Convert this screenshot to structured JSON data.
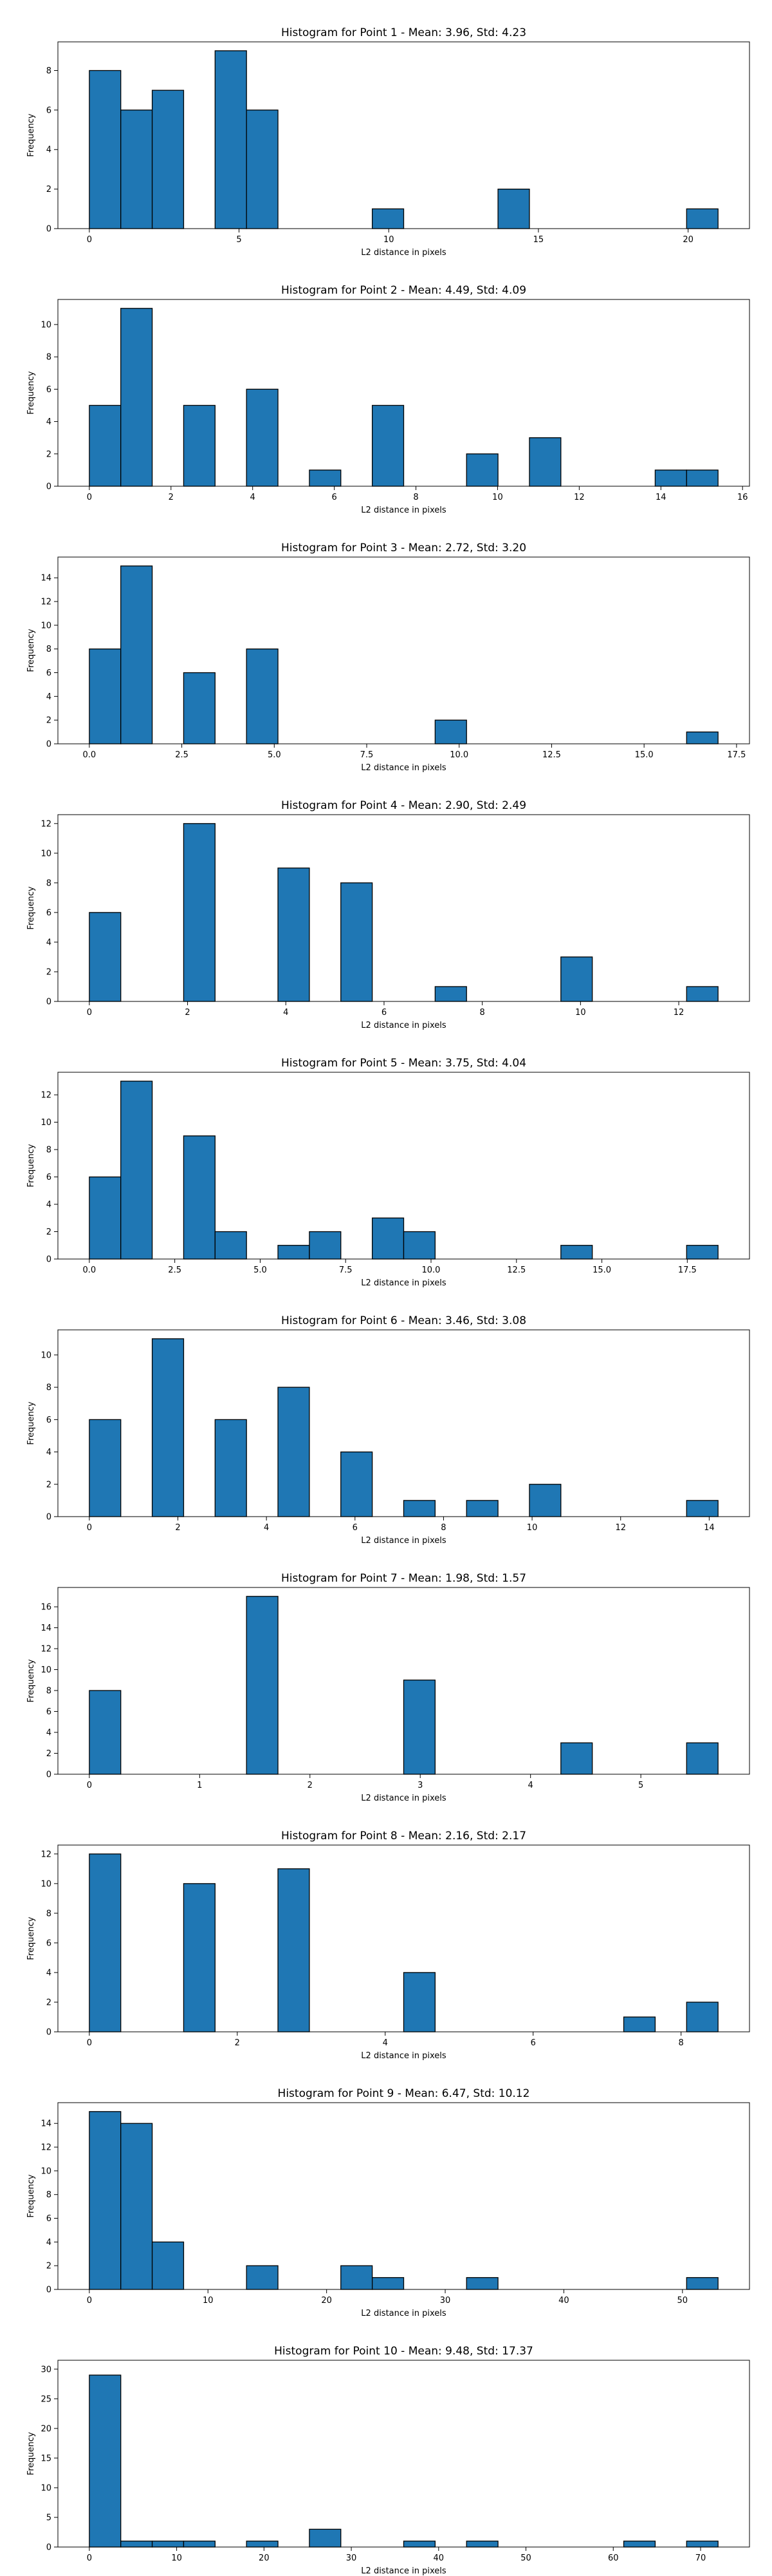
{
  "figure": {
    "background": "#ffffff"
  },
  "style": {
    "bar_fill": "#1f77b4",
    "bar_edge": "#000000"
  },
  "chart_data": [
    {
      "type": "bar",
      "title": "Histogram for Point 1 - Mean: 3.96, Std: 4.23",
      "xlabel": "L2 distance in pixels",
      "ylabel": "Frequency",
      "xlim": [
        -1.05,
        22.05
      ],
      "ylim": [
        0,
        9.45
      ],
      "xticks": [
        0,
        5,
        10,
        15,
        20
      ],
      "xtick_labels": [
        "0",
        "5",
        "10",
        "15",
        "20"
      ],
      "yticks": [
        0,
        2,
        4,
        6,
        8
      ],
      "ytick_labels": [
        "0",
        "2",
        "4",
        "6",
        "8"
      ],
      "bins": {
        "start": 0,
        "width": 1.05
      },
      "values": [
        8,
        6,
        7,
        0,
        9,
        6,
        0,
        0,
        0,
        1,
        0,
        0,
        0,
        2,
        0,
        0,
        0,
        0,
        0,
        1
      ]
    },
    {
      "type": "bar",
      "title": "Histogram for Point 2 - Mean: 4.49, Std: 4.09",
      "xlabel": "L2 distance in pixels",
      "ylabel": "Frequency",
      "xlim": [
        -0.77,
        16.17
      ],
      "ylim": [
        0,
        11.55
      ],
      "xticks": [
        0,
        2,
        4,
        6,
        8,
        10,
        12,
        14,
        16
      ],
      "xtick_labels": [
        "0",
        "2",
        "4",
        "6",
        "8",
        "10",
        "12",
        "14",
        "16"
      ],
      "yticks": [
        0,
        2,
        4,
        6,
        8,
        10
      ],
      "ytick_labels": [
        "0",
        "2",
        "4",
        "6",
        "8",
        "10"
      ],
      "bins": {
        "start": 0,
        "width": 0.77
      },
      "values": [
        5,
        11,
        0,
        5,
        0,
        6,
        0,
        1,
        0,
        5,
        0,
        0,
        2,
        0,
        3,
        0,
        0,
        0,
        1,
        1
      ]
    },
    {
      "type": "bar",
      "title": "Histogram for Point 3 - Mean: 2.72, Std: 3.20",
      "xlabel": "L2 distance in pixels",
      "ylabel": "Frequency",
      "xlim": [
        -0.85,
        17.85
      ],
      "ylim": [
        0,
        15.75
      ],
      "xticks": [
        0,
        2.5,
        5,
        7.5,
        10,
        12.5,
        15,
        17.5
      ],
      "xtick_labels": [
        "0.0",
        "2.5",
        "5.0",
        "7.5",
        "10.0",
        "12.5",
        "15.0",
        "17.5"
      ],
      "yticks": [
        0,
        2,
        4,
        6,
        8,
        10,
        12,
        14
      ],
      "ytick_labels": [
        "0",
        "2",
        "4",
        "6",
        "8",
        "10",
        "12",
        "14"
      ],
      "bins": {
        "start": 0,
        "width": 0.85
      },
      "values": [
        8,
        15,
        0,
        6,
        0,
        8,
        0,
        0,
        0,
        0,
        0,
        2,
        0,
        0,
        0,
        0,
        0,
        0,
        0,
        1
      ]
    },
    {
      "type": "bar",
      "title": "Histogram for Point 4 - Mean: 2.90, Std: 2.49",
      "xlabel": "L2 distance in pixels",
      "ylabel": "Frequency",
      "xlim": [
        -0.64,
        13.44
      ],
      "ylim": [
        0,
        12.6
      ],
      "xticks": [
        0,
        2,
        4,
        6,
        8,
        10,
        12
      ],
      "xtick_labels": [
        "0",
        "2",
        "4",
        "6",
        "8",
        "10",
        "12"
      ],
      "yticks": [
        0,
        2,
        4,
        6,
        8,
        10,
        12
      ],
      "ytick_labels": [
        "0",
        "2",
        "4",
        "6",
        "8",
        "10",
        "12"
      ],
      "bins": {
        "start": 0,
        "width": 0.64
      },
      "values": [
        6,
        0,
        0,
        12,
        0,
        0,
        9,
        0,
        8,
        0,
        0,
        1,
        0,
        0,
        0,
        3,
        0,
        0,
        0,
        1
      ]
    },
    {
      "type": "bar",
      "title": "Histogram for Point 5 - Mean: 3.75, Std: 4.04",
      "xlabel": "L2 distance in pixels",
      "ylabel": "Frequency",
      "xlim": [
        -0.92,
        19.32
      ],
      "ylim": [
        0,
        13.65
      ],
      "xticks": [
        0,
        2.5,
        5,
        7.5,
        10,
        12.5,
        15,
        17.5
      ],
      "xtick_labels": [
        "0.0",
        "2.5",
        "5.0",
        "7.5",
        "10.0",
        "12.5",
        "15.0",
        "17.5"
      ],
      "yticks": [
        0,
        2,
        4,
        6,
        8,
        10,
        12
      ],
      "ytick_labels": [
        "0",
        "2",
        "4",
        "6",
        "8",
        "10",
        "12"
      ],
      "bins": {
        "start": 0,
        "width": 0.92
      },
      "values": [
        6,
        13,
        0,
        9,
        2,
        0,
        1,
        2,
        0,
        3,
        2,
        0,
        0,
        0,
        0,
        1,
        0,
        0,
        0,
        1
      ]
    },
    {
      "type": "bar",
      "title": "Histogram for Point 6 - Mean: 3.46, Std: 3.08",
      "xlabel": "L2 distance in pixels",
      "ylabel": "Frequency",
      "xlim": [
        -0.71,
        14.91
      ],
      "ylim": [
        0,
        11.55
      ],
      "xticks": [
        0,
        2,
        4,
        6,
        8,
        10,
        12,
        14
      ],
      "xtick_labels": [
        "0",
        "2",
        "4",
        "6",
        "8",
        "10",
        "12",
        "14"
      ],
      "yticks": [
        0,
        2,
        4,
        6,
        8,
        10
      ],
      "ytick_labels": [
        "0",
        "2",
        "4",
        "6",
        "8",
        "10"
      ],
      "bins": {
        "start": 0,
        "width": 0.71
      },
      "values": [
        6,
        0,
        11,
        0,
        6,
        0,
        8,
        0,
        4,
        0,
        1,
        0,
        1,
        0,
        2,
        0,
        0,
        0,
        0,
        1
      ]
    },
    {
      "type": "bar",
      "title": "Histogram for Point 7 - Mean: 1.98, Std: 1.57",
      "xlabel": "L2 distance in pixels",
      "ylabel": "Frequency",
      "xlim": [
        -0.285,
        5.985
      ],
      "ylim": [
        0,
        17.85
      ],
      "xticks": [
        0,
        1,
        2,
        3,
        4,
        5
      ],
      "xtick_labels": [
        "0",
        "1",
        "2",
        "3",
        "4",
        "5"
      ],
      "yticks": [
        0,
        2,
        4,
        6,
        8,
        10,
        12,
        14,
        16
      ],
      "ytick_labels": [
        "0",
        "2",
        "4",
        "6",
        "8",
        "10",
        "12",
        "14",
        "16"
      ],
      "bins": {
        "start": 0,
        "width": 0.285
      },
      "values": [
        8,
        0,
        0,
        0,
        0,
        17,
        0,
        0,
        0,
        0,
        9,
        0,
        0,
        0,
        0,
        3,
        0,
        0,
        0,
        3
      ]
    },
    {
      "type": "bar",
      "title": "Histogram for Point 8 - Mean: 2.16, Std: 2.17",
      "xlabel": "L2 distance in pixels",
      "ylabel": "Frequency",
      "xlim": [
        -0.425,
        8.925
      ],
      "ylim": [
        0,
        12.6
      ],
      "xticks": [
        0,
        2,
        4,
        6,
        8
      ],
      "xtick_labels": [
        "0",
        "2",
        "4",
        "6",
        "8"
      ],
      "yticks": [
        0,
        2,
        4,
        6,
        8,
        10,
        12
      ],
      "ytick_labels": [
        "0",
        "2",
        "4",
        "6",
        "8",
        "10",
        "12"
      ],
      "bins": {
        "start": 0,
        "width": 0.425
      },
      "values": [
        12,
        0,
        0,
        10,
        0,
        0,
        11,
        0,
        0,
        0,
        4,
        0,
        0,
        0,
        0,
        0,
        0,
        1,
        0,
        2
      ]
    },
    {
      "type": "bar",
      "title": "Histogram for Point 9 - Mean: 6.47, Std: 10.12",
      "xlabel": "L2 distance in pixels",
      "ylabel": "Frequency",
      "xlim": [
        -2.65,
        55.65
      ],
      "ylim": [
        0,
        15.75
      ],
      "xticks": [
        0,
        10,
        20,
        30,
        40,
        50
      ],
      "xtick_labels": [
        "0",
        "10",
        "20",
        "30",
        "40",
        "50"
      ],
      "yticks": [
        0,
        2,
        4,
        6,
        8,
        10,
        12,
        14
      ],
      "ytick_labels": [
        "0",
        "2",
        "4",
        "6",
        "8",
        "10",
        "12",
        "14"
      ],
      "bins": {
        "start": 0,
        "width": 2.65
      },
      "values": [
        15,
        14,
        4,
        0,
        0,
        2,
        0,
        0,
        2,
        1,
        0,
        0,
        1,
        0,
        0,
        0,
        0,
        0,
        0,
        1
      ]
    },
    {
      "type": "bar",
      "title": "Histogram for Point 10 - Mean: 9.48, Std: 17.37",
      "xlabel": "L2 distance in pixels",
      "ylabel": "Frequency",
      "xlim": [
        -3.6,
        75.6
      ],
      "ylim": [
        0,
        31.5
      ],
      "xticks": [
        0,
        10,
        20,
        30,
        40,
        50,
        60,
        70
      ],
      "xtick_labels": [
        "0",
        "10",
        "20",
        "30",
        "40",
        "50",
        "60",
        "70"
      ],
      "yticks": [
        0,
        5,
        10,
        15,
        20,
        25,
        30
      ],
      "ytick_labels": [
        "0",
        "5",
        "10",
        "15",
        "20",
        "25",
        "30"
      ],
      "bins": {
        "start": 0,
        "width": 3.6
      },
      "values": [
        29,
        1,
        1,
        1,
        0,
        1,
        0,
        3,
        0,
        0,
        1,
        0,
        1,
        0,
        0,
        0,
        0,
        1,
        0,
        1
      ]
    }
  ]
}
